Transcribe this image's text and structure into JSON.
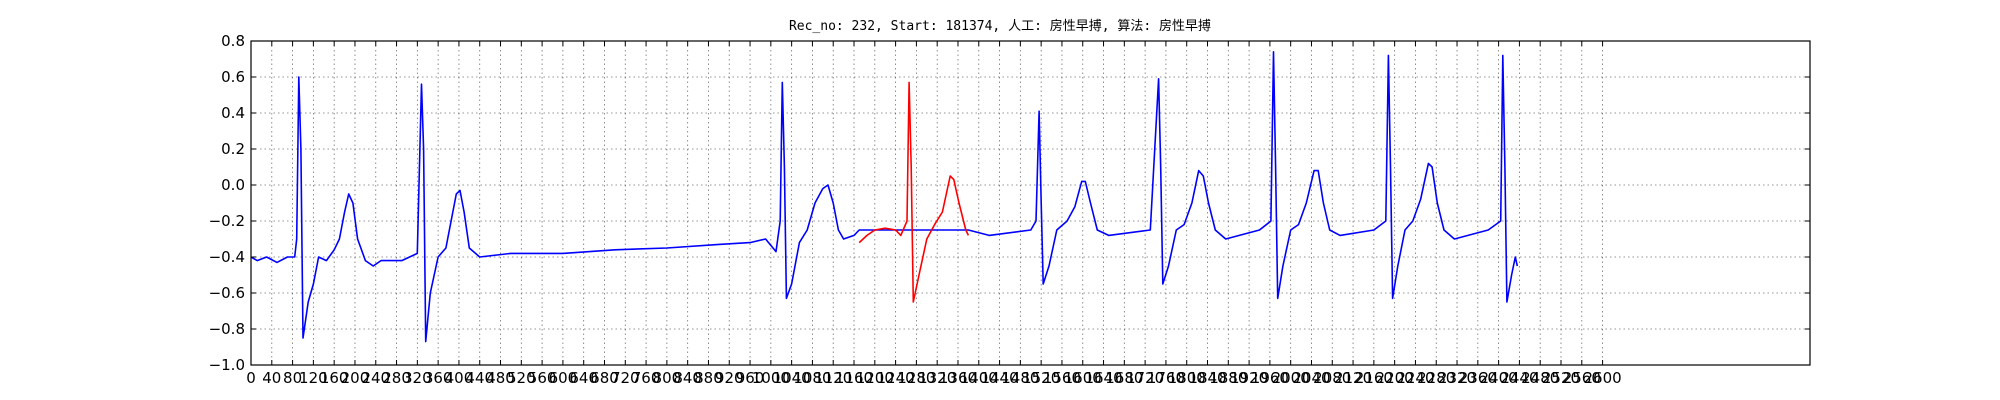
{
  "chart_data": {
    "type": "line",
    "title": "Rec_no: 232, Start: 181374, 人工: 房性早搏, 算法: 房性早搏",
    "xlabel": "",
    "ylabel": "",
    "xlim": [
      0,
      2999
    ],
    "ylim": [
      -1.0,
      0.8
    ],
    "grid": true,
    "xtick_step": 40,
    "yticks": [
      -1.0,
      -0.8,
      -0.6,
      -0.4,
      -0.2,
      0.0,
      0.2,
      0.4,
      0.6,
      0.8
    ],
    "ytick_labels": [
      "−1.0",
      "−0.8",
      "−0.6",
      "−0.4",
      "−0.2",
      "0.0",
      "0.2",
      "0.4",
      "0.6",
      "0.8"
    ],
    "xtick_labels": [
      "0",
      "40",
      "80",
      "120",
      "160",
      "200",
      "240",
      "280",
      "320",
      "360",
      "400",
      "440",
      "480",
      "520",
      "560",
      "600",
      "640",
      "680",
      "720",
      "760",
      "800",
      "840",
      "880",
      "920",
      "960",
      "1000",
      "1040",
      "1080",
      "1120",
      "1160",
      "1200",
      "1240",
      "1280",
      "1320",
      "1360",
      "1400",
      "1440",
      "1480",
      "1520",
      "1560",
      "1600",
      "1640",
      "1680",
      "1720",
      "1760",
      "1800",
      "1840",
      "1880",
      "1920",
      "1960",
      "2000",
      "2040",
      "2080",
      "2120",
      "2160",
      "2200",
      "2240",
      "2280",
      "2320",
      "2360",
      "2400",
      "2440",
      "2480",
      "2520",
      "2560",
      "2600"
    ],
    "series": [
      {
        "color": "#0000ff",
        "points": [
          [
            0,
            -0.4
          ],
          [
            12,
            -0.42
          ],
          [
            30,
            -0.4
          ],
          [
            50,
            -0.43
          ],
          [
            70,
            -0.4
          ],
          [
            84,
            -0.4
          ],
          [
            88,
            -0.3
          ],
          [
            92,
            0.6
          ],
          [
            96,
            0.2
          ],
          [
            100,
            -0.85
          ],
          [
            110,
            -0.65
          ],
          [
            120,
            -0.55
          ],
          [
            130,
            -0.4
          ],
          [
            145,
            -0.42
          ],
          [
            160,
            -0.36
          ],
          [
            170,
            -0.3
          ],
          [
            180,
            -0.15
          ],
          [
            188,
            -0.05
          ],
          [
            196,
            -0.1
          ],
          [
            205,
            -0.3
          ],
          [
            220,
            -0.42
          ],
          [
            235,
            -0.45
          ],
          [
            250,
            -0.42
          ],
          [
            270,
            -0.42
          ],
          [
            290,
            -0.42
          ],
          [
            320,
            -0.38
          ],
          [
            328,
            0.56
          ],
          [
            332,
            0.2
          ],
          [
            336,
            -0.87
          ],
          [
            345,
            -0.6
          ],
          [
            360,
            -0.4
          ],
          [
            375,
            -0.35
          ],
          [
            385,
            -0.2
          ],
          [
            395,
            -0.05
          ],
          [
            402,
            -0.03
          ],
          [
            410,
            -0.15
          ],
          [
            420,
            -0.35
          ],
          [
            440,
            -0.4
          ],
          [
            500,
            -0.38
          ],
          [
            600,
            -0.38
          ],
          [
            700,
            -0.36
          ],
          [
            800,
            -0.35
          ],
          [
            900,
            -0.33
          ],
          [
            960,
            -0.32
          ],
          [
            990,
            -0.3
          ],
          [
            1010,
            -0.37
          ],
          [
            1018,
            -0.2
          ],
          [
            1022,
            0.57
          ],
          [
            1026,
            0.1
          ],
          [
            1030,
            -0.63
          ],
          [
            1040,
            -0.55
          ],
          [
            1055,
            -0.32
          ],
          [
            1070,
            -0.25
          ],
          [
            1085,
            -0.1
          ],
          [
            1100,
            -0.02
          ],
          [
            1110,
            0.0
          ],
          [
            1120,
            -0.1
          ],
          [
            1130,
            -0.25
          ],
          [
            1140,
            -0.3
          ],
          [
            1160,
            -0.28
          ],
          [
            1170,
            -0.25
          ],
          [
            1380,
            -0.25
          ],
          [
            1420,
            -0.28
          ],
          [
            1500,
            -0.25
          ],
          [
            1510,
            -0.2
          ],
          [
            1516,
            0.41
          ],
          [
            1520,
            -0.1
          ],
          [
            1524,
            -0.55
          ],
          [
            1535,
            -0.45
          ],
          [
            1550,
            -0.25
          ],
          [
            1570,
            -0.2
          ],
          [
            1585,
            -0.12
          ],
          [
            1598,
            0.02
          ],
          [
            1605,
            0.02
          ],
          [
            1615,
            -0.1
          ],
          [
            1628,
            -0.25
          ],
          [
            1650,
            -0.28
          ],
          [
            1730,
            -0.25
          ],
          [
            1746,
            0.59
          ],
          [
            1750,
            0.1
          ],
          [
            1754,
            -0.55
          ],
          [
            1765,
            -0.45
          ],
          [
            1780,
            -0.25
          ],
          [
            1795,
            -0.22
          ],
          [
            1810,
            -0.1
          ],
          [
            1823,
            0.08
          ],
          [
            1832,
            0.05
          ],
          [
            1842,
            -0.1
          ],
          [
            1855,
            -0.25
          ],
          [
            1875,
            -0.3
          ],
          [
            1940,
            -0.25
          ],
          [
            1962,
            -0.2
          ],
          [
            1967,
            0.74
          ],
          [
            1971,
            0.1
          ],
          [
            1975,
            -0.63
          ],
          [
            1985,
            -0.45
          ],
          [
            2000,
            -0.25
          ],
          [
            2015,
            -0.22
          ],
          [
            2030,
            -0.1
          ],
          [
            2045,
            0.08
          ],
          [
            2053,
            0.08
          ],
          [
            2063,
            -0.1
          ],
          [
            2075,
            -0.25
          ],
          [
            2095,
            -0.28
          ],
          [
            2160,
            -0.25
          ],
          [
            2183,
            -0.2
          ],
          [
            2188,
            0.72
          ],
          [
            2192,
            0.1
          ],
          [
            2196,
            -0.63
          ],
          [
            2206,
            -0.45
          ],
          [
            2220,
            -0.25
          ],
          [
            2235,
            -0.2
          ],
          [
            2250,
            -0.08
          ],
          [
            2265,
            0.12
          ],
          [
            2272,
            0.1
          ],
          [
            2282,
            -0.1
          ],
          [
            2295,
            -0.25
          ],
          [
            2315,
            -0.3
          ],
          [
            2380,
            -0.25
          ],
          [
            2404,
            -0.2
          ],
          [
            2408,
            0.72
          ],
          [
            2412,
            0.1
          ],
          [
            2416,
            -0.65
          ],
          [
            2425,
            -0.5
          ],
          [
            2432,
            -0.4
          ],
          [
            2436,
            -0.45
          ]
        ]
      },
      {
        "color": "#ff0000",
        "points": [
          [
            1170,
            -0.32
          ],
          [
            1185,
            -0.28
          ],
          [
            1200,
            -0.25
          ],
          [
            1220,
            -0.24
          ],
          [
            1240,
            -0.25
          ],
          [
            1250,
            -0.28
          ],
          [
            1262,
            -0.2
          ],
          [
            1266,
            0.57
          ],
          [
            1270,
            0.1
          ],
          [
            1274,
            -0.65
          ],
          [
            1285,
            -0.5
          ],
          [
            1300,
            -0.3
          ],
          [
            1315,
            -0.22
          ],
          [
            1330,
            -0.15
          ],
          [
            1345,
            0.05
          ],
          [
            1352,
            0.03
          ],
          [
            1362,
            -0.1
          ],
          [
            1375,
            -0.25
          ],
          [
            1380,
            -0.28
          ]
        ]
      }
    ]
  }
}
